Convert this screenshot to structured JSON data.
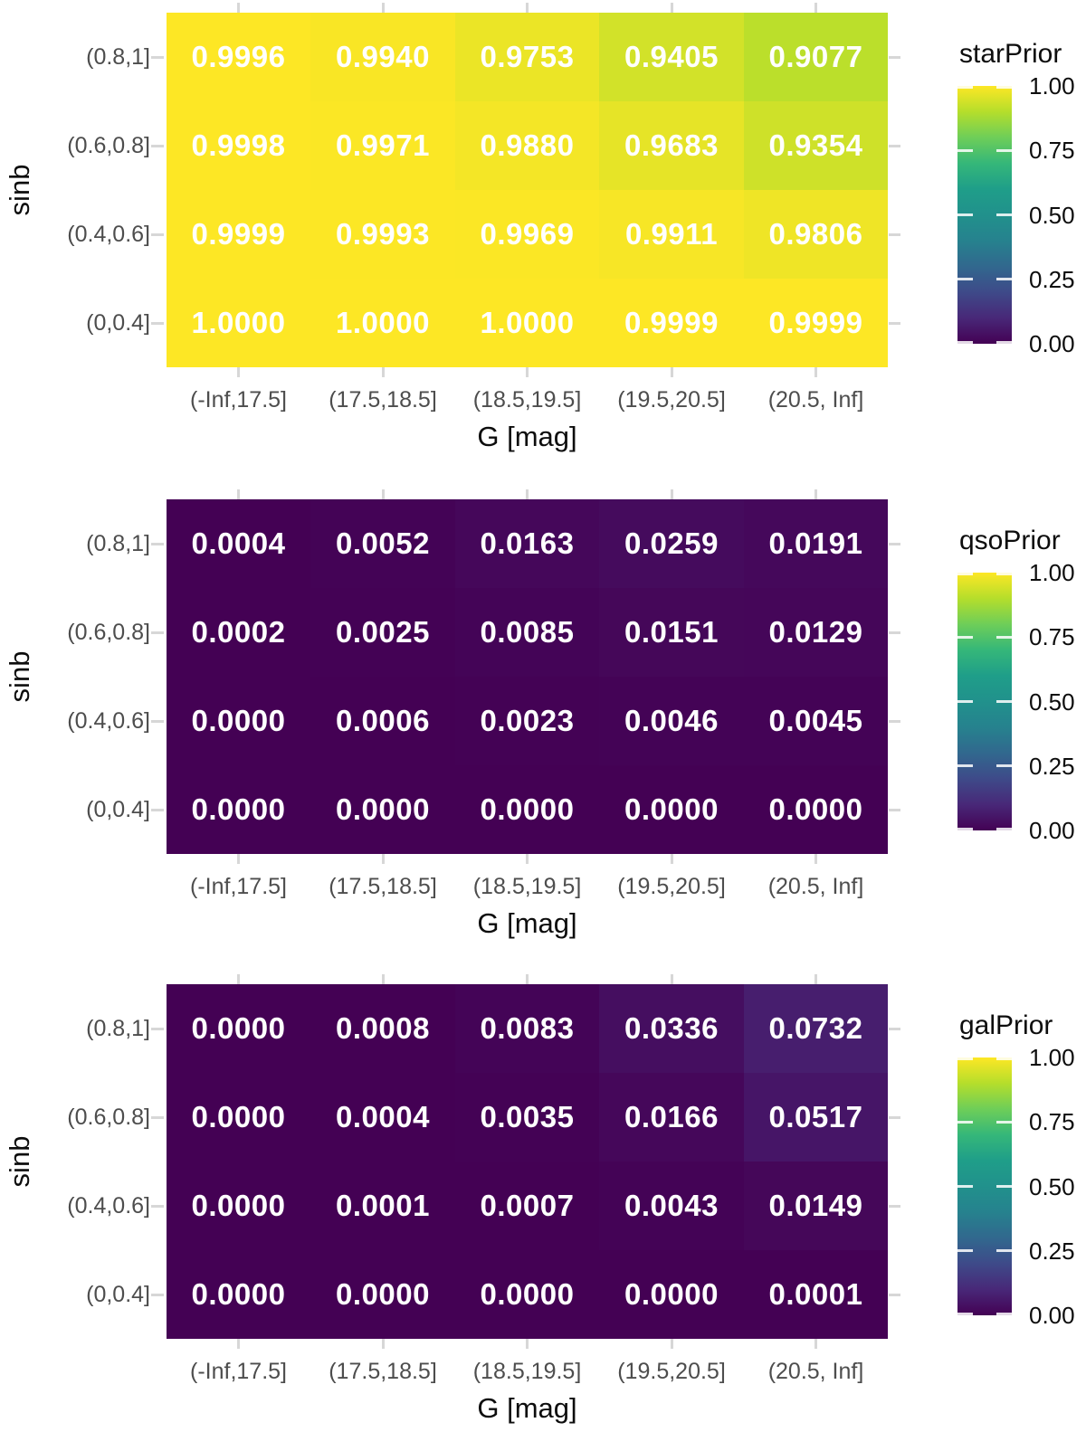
{
  "figure": {
    "background": "#ffffff",
    "axis_text_color": "#4d4d4d",
    "axis_title_color": "#0d0d0d",
    "tick_mark_color": "#d7d7d7",
    "cell_text_color": "#ffffff",
    "colormap_name": "viridis",
    "viridis_stops": [
      "#440154",
      "#482878",
      "#3e4a89",
      "#31688e",
      "#26828e",
      "#21918c",
      "#1f9e89",
      "#35b779",
      "#6ece58",
      "#b5de2b",
      "#fde725"
    ]
  },
  "chart_data": [
    {
      "type": "heatmap",
      "legend_title": "starPrior",
      "xlabel": "G [mag]",
      "ylabel": "sinb",
      "x_categories": [
        "(-Inf,17.5]",
        "(17.5,18.5]",
        "(18.5,19.5]",
        "(19.5,20.5]",
        "(20.5, Inf]"
      ],
      "y_categories": [
        "(0.8,1]",
        "(0.6,0.8]",
        "(0.4,0.6]",
        "(0,0.4]"
      ],
      "rows": [
        [
          0.9996,
          0.994,
          0.9753,
          0.9405,
          0.9077
        ],
        [
          0.9998,
          0.9971,
          0.988,
          0.9683,
          0.9354
        ],
        [
          0.9999,
          0.9993,
          0.9969,
          0.9911,
          0.9806
        ],
        [
          1.0,
          1.0,
          1.0,
          0.9999,
          0.9999
        ]
      ],
      "value_decimals": 4,
      "color_limits": [
        0,
        1
      ],
      "legend_tick_labels": [
        "1.00",
        "0.75",
        "0.50",
        "0.25",
        "0.00"
      ],
      "legend_tick_values": [
        1.0,
        0.75,
        0.5,
        0.25,
        0.0
      ],
      "grid": false,
      "legend_position": "right"
    },
    {
      "type": "heatmap",
      "legend_title": "qsoPrior",
      "xlabel": "G [mag]",
      "ylabel": "sinb",
      "x_categories": [
        "(-Inf,17.5]",
        "(17.5,18.5]",
        "(18.5,19.5]",
        "(19.5,20.5]",
        "(20.5, Inf]"
      ],
      "y_categories": [
        "(0.8,1]",
        "(0.6,0.8]",
        "(0.4,0.6]",
        "(0,0.4]"
      ],
      "rows": [
        [
          0.0004,
          0.0052,
          0.0163,
          0.0259,
          0.0191
        ],
        [
          0.0002,
          0.0025,
          0.0085,
          0.0151,
          0.0129
        ],
        [
          0.0,
          0.0006,
          0.0023,
          0.0046,
          0.0045
        ],
        [
          0.0,
          0.0,
          0.0,
          0.0,
          0.0
        ]
      ],
      "value_decimals": 4,
      "color_limits": [
        0,
        1
      ],
      "legend_tick_labels": [
        "1.00",
        "0.75",
        "0.50",
        "0.25",
        "0.00"
      ],
      "legend_tick_values": [
        1.0,
        0.75,
        0.5,
        0.25,
        0.0
      ],
      "grid": false,
      "legend_position": "right"
    },
    {
      "type": "heatmap",
      "legend_title": "galPrior",
      "xlabel": "G [mag]",
      "ylabel": "sinb",
      "x_categories": [
        "(-Inf,17.5]",
        "(17.5,18.5]",
        "(18.5,19.5]",
        "(19.5,20.5]",
        "(20.5, Inf]"
      ],
      "y_categories": [
        "(0.8,1]",
        "(0.6,0.8]",
        "(0.4,0.6]",
        "(0,0.4]"
      ],
      "rows": [
        [
          0.0,
          0.0008,
          0.0083,
          0.0336,
          0.0732
        ],
        [
          0.0,
          0.0004,
          0.0035,
          0.0166,
          0.0517
        ],
        [
          0.0,
          0.0001,
          0.0007,
          0.0043,
          0.0149
        ],
        [
          0.0,
          0.0,
          0.0,
          0.0,
          0.0001
        ]
      ],
      "value_decimals": 4,
      "color_limits": [
        0,
        1
      ],
      "legend_tick_labels": [
        "1.00",
        "0.75",
        "0.50",
        "0.25",
        "0.00"
      ],
      "legend_tick_values": [
        1.0,
        0.75,
        0.5,
        0.25,
        0.0
      ],
      "grid": false,
      "legend_position": "right"
    }
  ]
}
